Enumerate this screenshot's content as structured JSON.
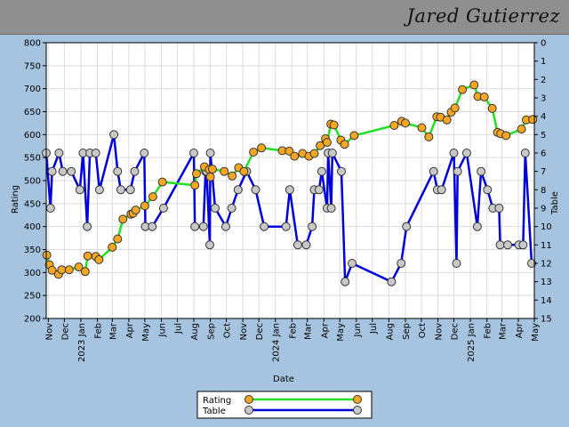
{
  "header": {
    "player_name": "Jared Gutierrez"
  },
  "chart_data": {
    "type": "line",
    "xlabel": "Date",
    "ylabel": "Rating",
    "y2label": "Table",
    "ylim": [
      200,
      800
    ],
    "y2lim": [
      15,
      0
    ],
    "xlim": [
      "2022-10-28",
      "2025-05-01"
    ],
    "yticks": [
      200,
      250,
      300,
      350,
      400,
      450,
      500,
      550,
      600,
      650,
      700,
      750,
      800
    ],
    "y2ticks": [
      0,
      1,
      2,
      3,
      4,
      5,
      6,
      7,
      8,
      9,
      10,
      11,
      12,
      13,
      14,
      15
    ],
    "xticks": [
      {
        "date": "2022-11-01",
        "label": "Nov"
      },
      {
        "date": "2022-12-01",
        "label": "Dec"
      },
      {
        "date": "2023-01-01",
        "label": "2023 Jan"
      },
      {
        "date": "2023-02-01",
        "label": "Feb"
      },
      {
        "date": "2023-03-01",
        "label": "Mar"
      },
      {
        "date": "2023-04-01",
        "label": "Apr"
      },
      {
        "date": "2023-05-01",
        "label": "May"
      },
      {
        "date": "2023-06-01",
        "label": "Jun"
      },
      {
        "date": "2023-07-01",
        "label": "Jul"
      },
      {
        "date": "2023-08-01",
        "label": "Aug"
      },
      {
        "date": "2023-09-01",
        "label": "Sep"
      },
      {
        "date": "2023-10-01",
        "label": "Oct"
      },
      {
        "date": "2023-11-01",
        "label": "Nov"
      },
      {
        "date": "2023-12-01",
        "label": "Dec"
      },
      {
        "date": "2024-01-01",
        "label": "2024 Jan"
      },
      {
        "date": "2024-02-01",
        "label": "Feb"
      },
      {
        "date": "2024-03-01",
        "label": "Mar"
      },
      {
        "date": "2024-04-01",
        "label": "Apr"
      },
      {
        "date": "2024-05-01",
        "label": "May"
      },
      {
        "date": "2024-06-01",
        "label": "Jun"
      },
      {
        "date": "2024-07-01",
        "label": "Jul"
      },
      {
        "date": "2024-08-01",
        "label": "Aug"
      },
      {
        "date": "2024-09-01",
        "label": "Sep"
      },
      {
        "date": "2024-10-01",
        "label": "Oct"
      },
      {
        "date": "2024-11-01",
        "label": "Nov"
      },
      {
        "date": "2024-12-01",
        "label": "Dec"
      },
      {
        "date": "2025-01-01",
        "label": "2025 Jan"
      },
      {
        "date": "2025-02-01",
        "label": "Feb"
      },
      {
        "date": "2025-03-01",
        "label": "Mar"
      },
      {
        "date": "2025-04-01",
        "label": "Apr"
      },
      {
        "date": "2025-05-01",
        "label": "May"
      }
    ],
    "grid": true,
    "legend_position": "bottom-center",
    "series": [
      {
        "name": "Rating",
        "axis": "left",
        "line_color": "#22e022",
        "marker_color": "#f5a623",
        "points": [
          [
            "2022-10-29",
            338
          ],
          [
            "2022-11-03",
            317
          ],
          [
            "2022-11-08",
            305
          ],
          [
            "2022-11-20",
            296
          ],
          [
            "2022-11-26",
            306
          ],
          [
            "2022-12-10",
            306
          ],
          [
            "2022-12-28",
            312
          ],
          [
            "2023-01-09",
            302
          ],
          [
            "2023-01-14",
            336
          ],
          [
            "2023-01-29",
            335
          ],
          [
            "2023-02-04",
            328
          ],
          [
            "2023-03-01",
            355
          ],
          [
            "2023-03-11",
            373
          ],
          [
            "2023-03-21",
            416
          ],
          [
            "2023-04-05",
            427
          ],
          [
            "2023-04-09",
            429
          ],
          [
            "2023-04-14",
            436
          ],
          [
            "2023-05-01",
            445
          ],
          [
            "2023-05-16",
            465
          ],
          [
            "2023-06-03",
            497
          ],
          [
            "2023-08-03",
            490
          ],
          [
            "2023-08-06",
            515
          ],
          [
            "2023-08-21",
            530
          ],
          [
            "2023-08-30",
            524
          ],
          [
            "2023-09-01",
            508
          ],
          [
            "2023-09-05",
            525
          ],
          [
            "2023-09-27",
            520
          ],
          [
            "2023-10-12",
            510
          ],
          [
            "2023-10-24",
            528
          ],
          [
            "2023-11-03",
            520
          ],
          [
            "2023-11-21",
            562
          ],
          [
            "2023-12-06",
            571
          ],
          [
            "2024-01-14",
            565
          ],
          [
            "2024-01-27",
            564
          ],
          [
            "2024-02-06",
            553
          ],
          [
            "2024-02-21",
            559
          ],
          [
            "2024-03-04",
            553
          ],
          [
            "2024-03-14",
            559
          ],
          [
            "2024-03-25",
            576
          ],
          [
            "2024-04-04",
            591
          ],
          [
            "2024-04-07",
            583
          ],
          [
            "2024-04-14",
            623
          ],
          [
            "2024-04-20",
            621
          ],
          [
            "2024-05-03",
            588
          ],
          [
            "2024-05-10",
            579
          ],
          [
            "2024-05-28",
            598
          ],
          [
            "2024-08-11",
            620
          ],
          [
            "2024-08-25",
            629
          ],
          [
            "2024-09-01",
            625
          ],
          [
            "2024-10-02",
            615
          ],
          [
            "2024-10-15",
            595
          ],
          [
            "2024-10-30",
            639
          ],
          [
            "2024-11-06",
            638
          ],
          [
            "2024-11-18",
            632
          ],
          [
            "2024-11-26",
            649
          ],
          [
            "2024-12-03",
            658
          ],
          [
            "2024-12-17",
            698
          ],
          [
            "2025-01-08",
            708
          ],
          [
            "2025-01-15",
            683
          ],
          [
            "2025-01-27",
            682
          ],
          [
            "2025-02-11",
            657
          ],
          [
            "2025-02-21",
            605
          ],
          [
            "2025-02-27",
            602
          ],
          [
            "2025-03-09",
            598
          ],
          [
            "2025-04-07",
            612
          ],
          [
            "2025-04-16",
            632
          ],
          [
            "2025-04-28",
            633
          ]
        ]
      },
      {
        "name": "Table",
        "axis": "right",
        "line_color": "#0000dd",
        "marker_color": "#c8c8c8",
        "points": [
          [
            "2022-10-28",
            6
          ],
          [
            "2022-11-05",
            9
          ],
          [
            "2022-11-08",
            7
          ],
          [
            "2022-11-21",
            6
          ],
          [
            "2022-11-28",
            7
          ],
          [
            "2022-12-14",
            7
          ],
          [
            "2022-12-30",
            8
          ],
          [
            "2023-01-05",
            6
          ],
          [
            "2023-01-13",
            10
          ],
          [
            "2023-01-18",
            6
          ],
          [
            "2023-01-29",
            6
          ],
          [
            "2023-02-05",
            8
          ],
          [
            "2023-03-04",
            5
          ],
          [
            "2023-03-11",
            7
          ],
          [
            "2023-03-17",
            8
          ],
          [
            "2023-04-04",
            8
          ],
          [
            "2023-04-12",
            7
          ],
          [
            "2023-04-30",
            6
          ],
          [
            "2023-05-02",
            10
          ],
          [
            "2023-05-15",
            10
          ],
          [
            "2023-06-05",
            9
          ],
          [
            "2023-08-01",
            6
          ],
          [
            "2023-08-03",
            10
          ],
          [
            "2023-08-19",
            10
          ],
          [
            "2023-08-23",
            7
          ],
          [
            "2023-08-25",
            7
          ],
          [
            "2023-08-31",
            11
          ],
          [
            "2023-09-01",
            6
          ],
          [
            "2023-09-10",
            9
          ],
          [
            "2023-09-30",
            10
          ],
          [
            "2023-10-11",
            9
          ],
          [
            "2023-10-23",
            8
          ],
          [
            "2023-11-08",
            7
          ],
          [
            "2023-11-25",
            8
          ],
          [
            "2023-12-11",
            10
          ],
          [
            "2024-01-21",
            10
          ],
          [
            "2024-01-28",
            8
          ],
          [
            "2024-02-12",
            11
          ],
          [
            "2024-02-28",
            11
          ],
          [
            "2024-03-10",
            10
          ],
          [
            "2024-03-14",
            8
          ],
          [
            "2024-03-23",
            8
          ],
          [
            "2024-03-28",
            7
          ],
          [
            "2024-04-07",
            9
          ],
          [
            "2024-04-09",
            6
          ],
          [
            "2024-04-15",
            9
          ],
          [
            "2024-04-17",
            6
          ],
          [
            "2024-05-04",
            7
          ],
          [
            "2024-05-11",
            13
          ],
          [
            "2024-05-24",
            12
          ],
          [
            "2024-08-06",
            13
          ],
          [
            "2024-08-24",
            12
          ],
          [
            "2024-09-03",
            10
          ],
          [
            "2024-10-24",
            7
          ],
          [
            "2024-10-31",
            8
          ],
          [
            "2024-11-08",
            8
          ],
          [
            "2024-12-01",
            6
          ],
          [
            "2024-12-06",
            12
          ],
          [
            "2024-12-08",
            7
          ],
          [
            "2024-12-25",
            6
          ],
          [
            "2025-01-14",
            10
          ],
          [
            "2025-01-21",
            7
          ],
          [
            "2025-02-02",
            8
          ],
          [
            "2025-02-12",
            9
          ],
          [
            "2025-02-24",
            9
          ],
          [
            "2025-02-26",
            11
          ],
          [
            "2025-03-12",
            11
          ],
          [
            "2025-04-02",
            11
          ],
          [
            "2025-04-10",
            11
          ],
          [
            "2025-04-14",
            6
          ],
          [
            "2025-04-26",
            12
          ]
        ]
      }
    ]
  }
}
